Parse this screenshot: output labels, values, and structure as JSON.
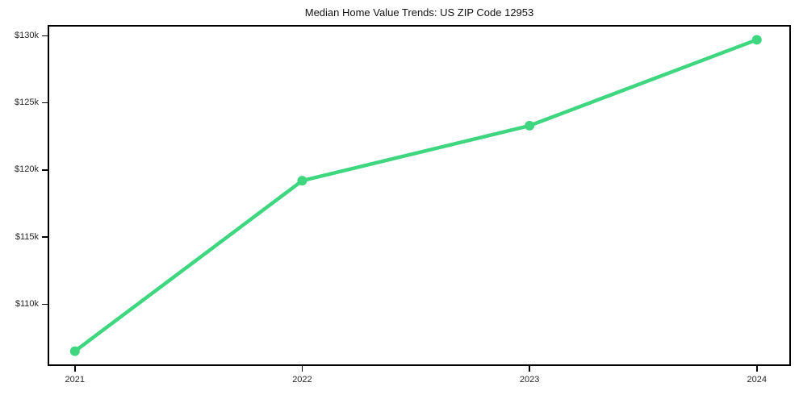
{
  "colors": {
    "line": "#3ed67f",
    "marker": "#3ed67f",
    "spine": "#000000",
    "tick_label": "#262626",
    "title_text": "#111111",
    "background": "#ffffff"
  },
  "chart_data": {
    "type": "line",
    "title": "Median Home Value Trends: US ZIP Code 12953",
    "xlabel": "",
    "ylabel": "",
    "series": [
      {
        "name": "Median home value",
        "x": [
          2021,
          2022,
          2023,
          2024
        ],
        "values": [
          106500,
          119200,
          123300,
          129700
        ]
      }
    ],
    "categories": [
      "2021",
      "2022",
      "2023",
      "2024"
    ],
    "xlim": [
      2020.88,
      2024.15
    ],
    "ylim": [
      105400,
      130800
    ],
    "x_ticks": [
      {
        "value": 2021,
        "label": "2021"
      },
      {
        "value": 2022,
        "label": "2022"
      },
      {
        "value": 2023,
        "label": "2023"
      },
      {
        "value": 2024,
        "label": "2024"
      }
    ],
    "y_ticks": [
      {
        "value": 110000,
        "label": "$110k"
      },
      {
        "value": 115000,
        "label": "$115k"
      },
      {
        "value": 120000,
        "label": "$120k"
      },
      {
        "value": 125000,
        "label": "$125k"
      },
      {
        "value": 130000,
        "label": "$130k"
      }
    ],
    "grid": false,
    "legend": "none",
    "line_width": 4.5,
    "marker": "circle",
    "marker_radius": 6
  }
}
